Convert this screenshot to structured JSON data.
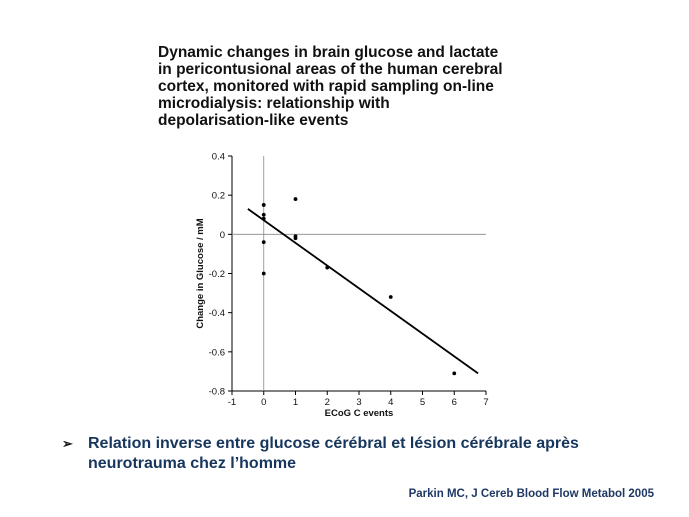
{
  "slide": {
    "title_lines": [
      "Dynamic changes in brain glucose and lactate",
      "in pericontusional areas of the human cerebral",
      "cortex, monitored with rapid sampling on-line",
      "microdialysis: relationship with",
      "depolarisation-like events"
    ],
    "bullet_symbol": "➢",
    "bullet_lines": [
      "Relation inverse entre glucose cérébral et lésion cérébrale après",
      "neurotrauma chez l’homme"
    ],
    "citation": "Parkin  MC, J Cereb Blood Flow Metabol 2005"
  },
  "chart_data": {
    "type": "scatter",
    "title": "",
    "xlabel": "ECoG C events",
    "ylabel": "Change in Glucose / mM",
    "xlim": [
      -1,
      7
    ],
    "ylim": [
      -0.8,
      0.4
    ],
    "xticks": [
      -1,
      0,
      1,
      2,
      3,
      4,
      5,
      6,
      7
    ],
    "yticks": [
      0.4,
      0.2,
      0,
      -0.2,
      -0.4,
      -0.6,
      -0.8
    ],
    "points": [
      {
        "x": 0,
        "y": 0.15
      },
      {
        "x": 0,
        "y": 0.1
      },
      {
        "x": 0,
        "y": 0.08
      },
      {
        "x": 0,
        "y": -0.04
      },
      {
        "x": 0,
        "y": -0.2
      },
      {
        "x": 1,
        "y": 0.18
      },
      {
        "x": 1,
        "y": -0.01
      },
      {
        "x": 1,
        "y": -0.02
      },
      {
        "x": 2,
        "y": -0.17
      },
      {
        "x": 4,
        "y": -0.32
      },
      {
        "x": 6,
        "y": -0.71
      }
    ],
    "regression_line": {
      "x": [
        -0.5,
        6.75
      ],
      "y": [
        0.13,
        -0.71
      ]
    },
    "reference_lines": {
      "x": 0,
      "y": 0
    },
    "grid": false,
    "legend": "none",
    "colors": {
      "points": "#000000",
      "line": "#000000",
      "reference": "#888888"
    }
  }
}
